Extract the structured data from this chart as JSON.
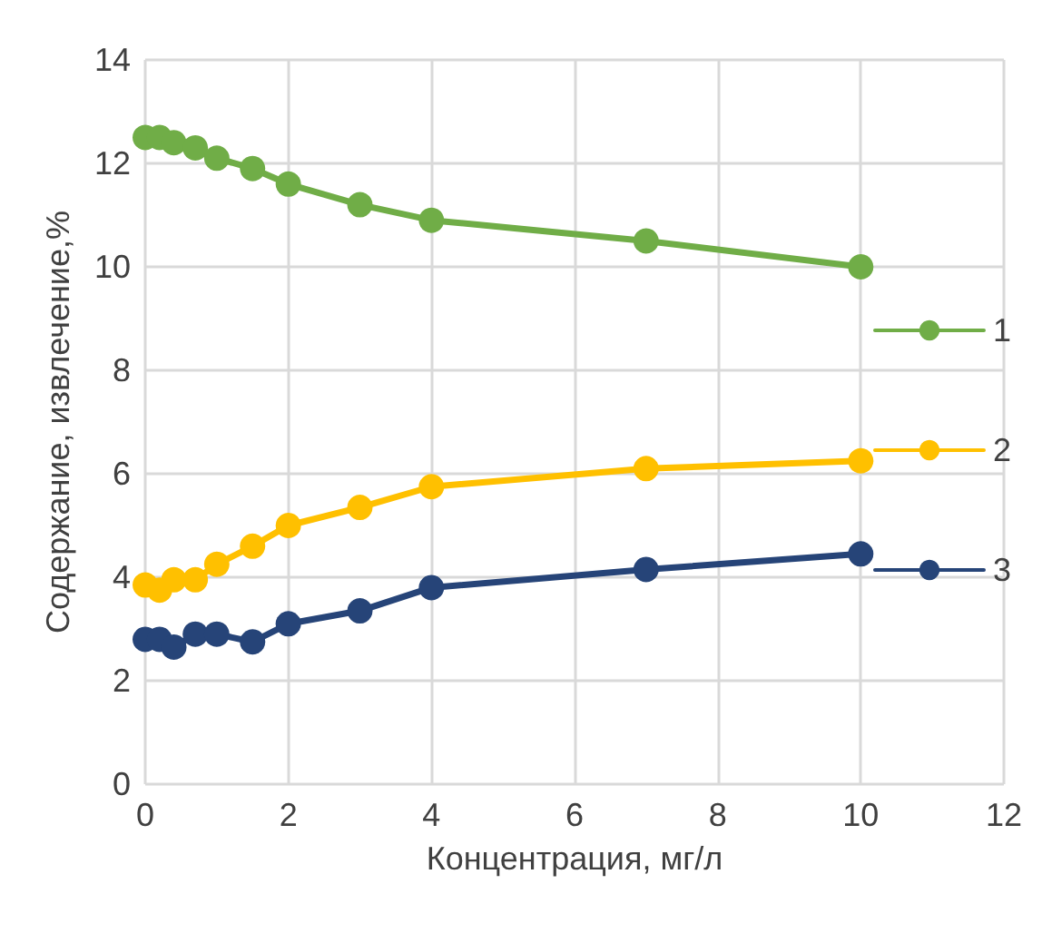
{
  "chart_data": {
    "type": "line",
    "xlabel": "Концентрация, мг/л",
    "ylabel": "Содержание, извлечение,%",
    "x": [
      0,
      0.2,
      0.4,
      0.7,
      1,
      1.5,
      2,
      3,
      4,
      7,
      10
    ],
    "series": [
      {
        "name": "1",
        "color": "#70ad47",
        "values": [
          12.5,
          12.5,
          12.4,
          12.3,
          12.1,
          11.9,
          11.6,
          11.2,
          10.9,
          10.5,
          10.0
        ]
      },
      {
        "name": "2",
        "color": "#ffc000",
        "values": [
          3.85,
          3.75,
          3.95,
          3.95,
          4.25,
          4.6,
          5.0,
          5.35,
          5.75,
          6.1,
          6.25
        ]
      },
      {
        "name": "3",
        "color": "#264478",
        "values": [
          2.8,
          2.8,
          2.65,
          2.9,
          2.9,
          2.75,
          3.1,
          3.35,
          3.8,
          4.15,
          4.45
        ]
      }
    ],
    "xlim": [
      0,
      12
    ],
    "xticks": [
      0,
      2,
      4,
      6,
      8,
      10,
      12
    ],
    "ylim": [
      0,
      14
    ],
    "yticks": [
      0,
      2,
      4,
      6,
      8,
      10,
      12,
      14
    ],
    "grid": true,
    "legend": "right",
    "marker": "circle",
    "line_style": "solid"
  }
}
